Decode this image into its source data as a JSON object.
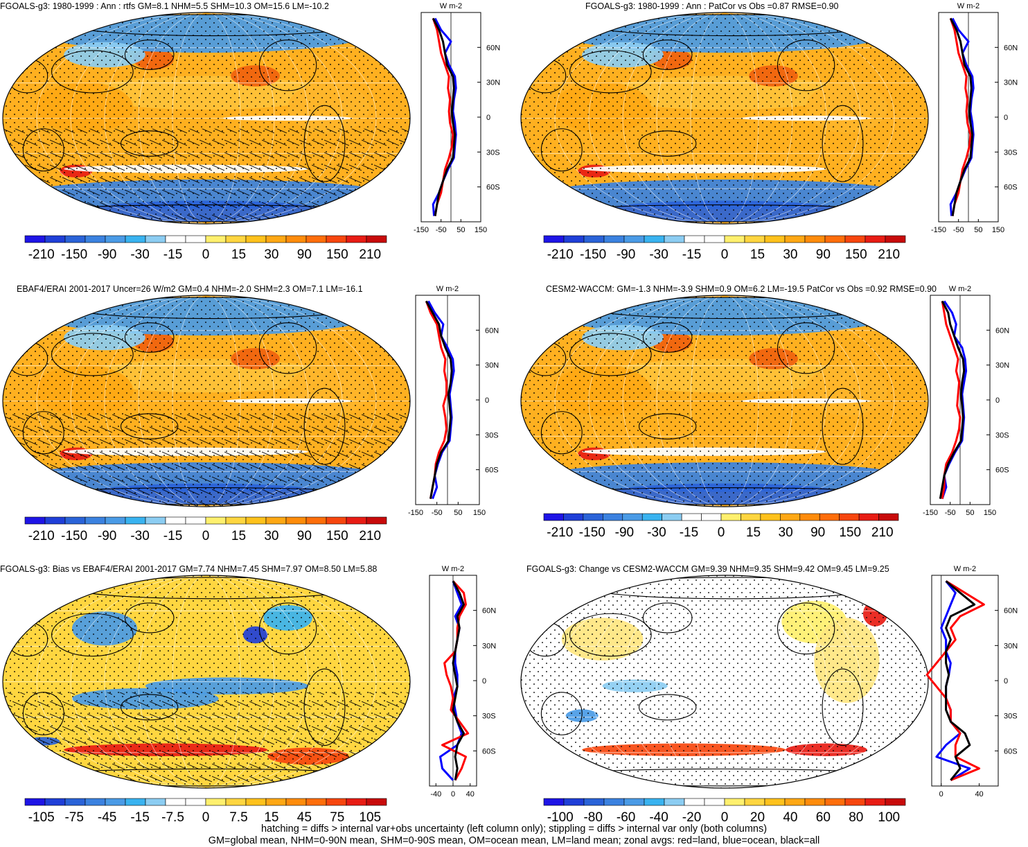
{
  "footer": {
    "line1": "hatching = diffs > internal var+obs uncertainty (left column only); stippling = diffs > internal var only (both columns)",
    "line2": "GM=global mean, NHM=0-90N mean, SHM=0-90S mean, OM=ocean mean, LM=land mean; zonal avgs: red=land, blue=ocean, black=all"
  },
  "colors": {
    "land": "#ff0000",
    "ocean": "#0000ff",
    "all": "#000000"
  },
  "chart_data": [
    {
      "type": "heatmap",
      "title": "FGOALS-g3: 1980-1999 : Ann : rtfs GM=8.1 NHM=5.5 SHM=10.3 OM=15.6 LM=-10.2",
      "colorbar_ticks": [
        "-210",
        "-150",
        "-90",
        "-30",
        "-15",
        "0",
        "15",
        "30",
        "90",
        "150",
        "210"
      ],
      "zonal": {
        "units": "W m-2",
        "lat_ticks": [
          "60N",
          "30N",
          "0",
          "30S",
          "60S"
        ],
        "x_ticks": [
          "-150",
          "-50",
          "50",
          "150"
        ],
        "xlim": [
          -150,
          150
        ],
        "lat": [
          85,
          75,
          65,
          55,
          45,
          35,
          25,
          15,
          5,
          -5,
          -15,
          -25,
          -35,
          -45,
          -55,
          -65,
          -75,
          -85
        ],
        "all": [
          -90,
          -60,
          -40,
          -30,
          -20,
          10,
          15,
          10,
          5,
          10,
          20,
          15,
          10,
          -20,
          -40,
          -60,
          -70,
          -80
        ],
        "land": [
          -90,
          -70,
          -60,
          -50,
          -30,
          -10,
          -15,
          -5,
          -10,
          -5,
          10,
          5,
          -10,
          -30,
          -40,
          -50,
          -70,
          -80
        ],
        "ocean": [
          -80,
          -50,
          0,
          -30,
          -10,
          20,
          25,
          15,
          10,
          20,
          25,
          20,
          15,
          -15,
          -40,
          -60,
          -90,
          -85
        ]
      }
    },
    {
      "type": "heatmap",
      "title": "FGOALS-g3: 1980-1999 : Ann : PatCor vs Obs =0.87 RMSE=0.90",
      "colorbar_ticks": [
        "-210",
        "-150",
        "-90",
        "-30",
        "-15",
        "0",
        "15",
        "30",
        "90",
        "150",
        "210"
      ],
      "zonal": {
        "units": "W m-2",
        "lat_ticks": [
          "60N",
          "30N",
          "0",
          "30S",
          "60S"
        ],
        "x_ticks": [
          "-150",
          "-50",
          "50",
          "150"
        ],
        "xlim": [
          -150,
          150
        ],
        "lat": [
          85,
          75,
          65,
          55,
          45,
          35,
          25,
          15,
          5,
          -5,
          -15,
          -25,
          -35,
          -45,
          -55,
          -65,
          -75,
          -85
        ],
        "all": [
          -90,
          -60,
          -40,
          -30,
          -20,
          10,
          15,
          10,
          5,
          10,
          20,
          15,
          10,
          -20,
          -40,
          -60,
          -70,
          -80
        ],
        "land": [
          -90,
          -70,
          -60,
          -50,
          -30,
          -10,
          -15,
          -5,
          -10,
          -5,
          10,
          5,
          -10,
          -30,
          -40,
          -50,
          -70,
          -80
        ],
        "ocean": [
          -80,
          -50,
          0,
          -30,
          -10,
          20,
          25,
          15,
          10,
          20,
          25,
          20,
          15,
          -15,
          -40,
          -60,
          -90,
          -85
        ]
      }
    },
    {
      "type": "heatmap",
      "title": "EBAF4/ERAI 2001-2017 Uncer=26 W/m2 GM=0.4 NHM=-2.0 SHM=2.3 OM=7.1 LM=-16.1",
      "colorbar_ticks": [
        "-210",
        "-150",
        "-90",
        "-30",
        "-15",
        "0",
        "15",
        "30",
        "90",
        "150",
        "210"
      ],
      "zonal": {
        "units": "W m-2",
        "lat_ticks": [
          "60N",
          "30N",
          "0",
          "30S",
          "60S"
        ],
        "x_ticks": [
          "-150",
          "-50",
          "50",
          "150"
        ],
        "xlim": [
          -150,
          150
        ],
        "lat": [
          85,
          75,
          65,
          55,
          45,
          35,
          25,
          15,
          5,
          -5,
          -15,
          -25,
          -35,
          -45,
          -55,
          -65,
          -75,
          -85
        ],
        "all": [
          -100,
          -70,
          -40,
          -30,
          -10,
          15,
          20,
          15,
          5,
          10,
          15,
          10,
          5,
          -30,
          -50,
          -60,
          -70,
          -80
        ],
        "land": [
          -100,
          -80,
          -50,
          -40,
          -30,
          -10,
          -15,
          -5,
          -5,
          -20,
          -10,
          -5,
          -15,
          -40,
          -55,
          -60,
          -70,
          -80
        ],
        "ocean": [
          -90,
          -60,
          -20,
          -30,
          0,
          25,
          30,
          20,
          10,
          15,
          20,
          15,
          10,
          -25,
          -45,
          -60,
          -50,
          -70
        ]
      }
    },
    {
      "type": "heatmap",
      "title": "CESM2-WACCM: GM=-1.3 NHM=-3.9 SHM=0.9 OM=6.2 LM=-19.5 PatCor vs Obs =0.92 RMSE=0.90",
      "colorbar_ticks": [
        "-210",
        "-150",
        "-90",
        "-30",
        "-15",
        "0",
        "15",
        "30",
        "90",
        "150",
        "210"
      ],
      "zonal": {
        "units": "W m-2",
        "lat_ticks": [
          "60N",
          "30N",
          "0",
          "30S",
          "60S"
        ],
        "x_ticks": [
          "-150",
          "-50",
          "50",
          "150"
        ],
        "xlim": [
          -150,
          150
        ],
        "lat": [
          85,
          75,
          65,
          55,
          45,
          35,
          25,
          15,
          5,
          -5,
          -15,
          -25,
          -35,
          -45,
          -55,
          -65,
          -75,
          -85
        ],
        "all": [
          -90,
          -60,
          -50,
          -30,
          -10,
          15,
          20,
          10,
          5,
          10,
          15,
          10,
          5,
          -30,
          -60,
          -80,
          -90,
          -100
        ],
        "land": [
          -90,
          -80,
          -70,
          -50,
          -30,
          -10,
          -20,
          -5,
          -10,
          -15,
          0,
          -5,
          -20,
          -40,
          -70,
          -80,
          -80,
          -90
        ],
        "ocean": [
          -80,
          -40,
          -20,
          -30,
          10,
          25,
          30,
          20,
          10,
          15,
          20,
          15,
          10,
          -25,
          -55,
          -80,
          -70,
          -90
        ]
      }
    },
    {
      "type": "heatmap",
      "title": "FGOALS-g3: Bias vs EBAF4/ERAI 2001-2017 GM=7.74 NHM=7.45 SHM=7.97 OM=8.50 LM=5.88",
      "colorbar_ticks": [
        "-105",
        "-75",
        "-45",
        "-15",
        "-7.5",
        "0",
        "7.5",
        "15",
        "45",
        "75",
        "105"
      ],
      "zonal": {
        "units": "W m-2",
        "lat_ticks": [
          "60N",
          "30N",
          "0",
          "30S",
          "60S"
        ],
        "x_ticks": [
          "-40",
          "0",
          "40"
        ],
        "xlim": [
          -55,
          55
        ],
        "lat": [
          85,
          75,
          65,
          55,
          45,
          35,
          25,
          15,
          5,
          -5,
          -15,
          -25,
          -35,
          -45,
          -55,
          -65,
          -75,
          -85
        ],
        "all": [
          0,
          15,
          25,
          10,
          15,
          10,
          5,
          0,
          5,
          10,
          5,
          0,
          10,
          25,
          10,
          5,
          10,
          5
        ],
        "land": [
          0,
          25,
          30,
          15,
          10,
          10,
          5,
          -20,
          -15,
          -5,
          0,
          -5,
          15,
          35,
          -25,
          30,
          20,
          5
        ],
        "ocean": [
          0,
          10,
          20,
          5,
          15,
          10,
          5,
          5,
          10,
          10,
          0,
          5,
          10,
          20,
          10,
          -30,
          -25,
          0
        ]
      }
    },
    {
      "type": "heatmap",
      "title": "FGOALS-g3: Change vs CESM2-WACCM GM=9.39 NHM=9.35 SHM=9.42 OM=9.45 LM=9.25",
      "colorbar_ticks": [
        "-100",
        "-80",
        "-60",
        "-40",
        "-20",
        "0",
        "20",
        "40",
        "60",
        "80",
        "100"
      ],
      "zonal": {
        "units": "W m-2",
        "lat_ticks": [
          "60N",
          "30N",
          "0",
          "30S",
          "60S"
        ],
        "x_ticks": [
          "0",
          "40"
        ],
        "xlim": [
          -10,
          60
        ],
        "lat": [
          85,
          75,
          65,
          55,
          45,
          35,
          25,
          15,
          5,
          -5,
          -15,
          -25,
          -35,
          -45,
          -55,
          -65,
          -75,
          -85
        ],
        "all": [
          5,
          20,
          35,
          10,
          5,
          10,
          5,
          5,
          8,
          5,
          5,
          5,
          10,
          25,
          30,
          15,
          20,
          10
        ],
        "land": [
          5,
          25,
          45,
          20,
          10,
          15,
          5,
          -5,
          -15,
          -5,
          5,
          10,
          10,
          20,
          15,
          15,
          40,
          10
        ],
        "ocean": [
          5,
          15,
          10,
          5,
          0,
          5,
          5,
          10,
          8,
          5,
          5,
          10,
          10,
          20,
          5,
          -5,
          30,
          10
        ]
      }
    }
  ]
}
